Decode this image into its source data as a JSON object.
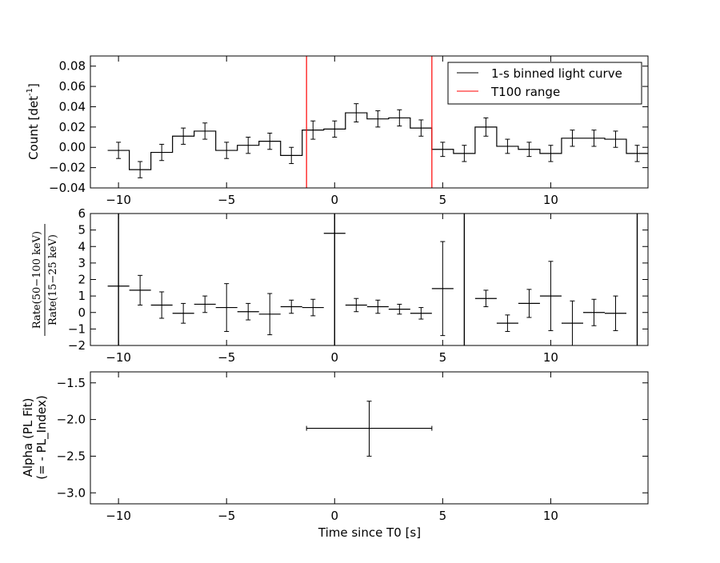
{
  "chart_data": [
    {
      "type": "line",
      "panel": "top",
      "ylabel_main": "Count [det",
      "ylabel_sup": "-1",
      "ylabel_end": "]",
      "xlim": [
        -11.3,
        14.5
      ],
      "ylim": [
        -0.04,
        0.09
      ],
      "yticks": [
        -0.04,
        -0.02,
        0.0,
        0.02,
        0.04,
        0.06,
        0.08
      ],
      "ytick_labels": [
        "−0.04",
        "−0.02",
        "0.00",
        "0.02",
        "0.04",
        "0.06",
        "0.08"
      ],
      "xticks": [
        -10,
        -5,
        0,
        5,
        10
      ],
      "xtick_labels": [
        "−10",
        "−5",
        "0",
        "5",
        "10"
      ],
      "legend": {
        "placement": "top-right",
        "entries": [
          {
            "label": "1-s binned light curve",
            "color": "#000000"
          },
          {
            "label": "T100 range",
            "color": "#ff0000"
          }
        ]
      },
      "series": [
        {
          "name": "1-s binned light curve",
          "color": "#000000",
          "x": [
            -10,
            -9,
            -8,
            -7,
            -6,
            -5,
            -4,
            -3,
            -2,
            -1,
            0,
            1,
            2,
            3,
            4,
            5,
            6,
            7,
            8,
            9,
            10,
            11,
            12,
            13,
            14
          ],
          "y": [
            -0.003,
            -0.022,
            -0.005,
            0.011,
            0.016,
            -0.003,
            0.002,
            0.006,
            -0.008,
            0.017,
            0.018,
            0.034,
            0.028,
            0.029,
            0.019,
            -0.002,
            -0.006,
            0.02,
            0.001,
            -0.002,
            -0.006,
            0.009,
            0.009,
            0.008,
            -0.006
          ],
          "yerr": [
            0.008,
            0.008,
            0.008,
            0.008,
            0.008,
            0.008,
            0.008,
            0.008,
            0.008,
            0.009,
            0.008,
            0.009,
            0.008,
            0.008,
            0.008,
            0.007,
            0.008,
            0.009,
            0.007,
            0.007,
            0.008,
            0.008,
            0.008,
            0.008,
            0.008
          ]
        }
      ],
      "vlines": [
        {
          "name": "T100 range",
          "x": -1.3,
          "color": "#ff0000"
        },
        {
          "name": "T100 range",
          "x": 4.5,
          "color": "#ff0000"
        }
      ]
    },
    {
      "type": "scatter",
      "panel": "middle",
      "ylabel_num": "Rate(50−100 keV)",
      "ylabel_den": "Rate(15−25 keV)",
      "xlim": [
        -11.3,
        14.5
      ],
      "ylim": [
        -2,
        6
      ],
      "yticks": [
        -2,
        -1,
        0,
        1,
        2,
        3,
        4,
        5,
        6
      ],
      "ytick_labels": [
        "−2",
        "−1",
        "0",
        "1",
        "2",
        "3",
        "4",
        "5",
        "6"
      ],
      "xticks": [
        -10,
        -5,
        0,
        5,
        10
      ],
      "xtick_labels": [
        "−10",
        "−5",
        "0",
        "5",
        "10"
      ],
      "series": [
        {
          "name": "",
          "x": [
            -10,
            -9,
            -8,
            -7,
            -6,
            -5,
            -4,
            -3,
            -2,
            -1,
            0,
            1,
            2,
            3,
            4,
            5,
            7,
            8,
            9,
            10,
            11,
            12,
            13
          ],
          "y": [
            1.6,
            1.35,
            0.45,
            -0.05,
            0.5,
            0.3,
            0.05,
            -0.1,
            0.35,
            0.3,
            4.8,
            0.45,
            0.35,
            0.2,
            -0.05,
            1.45,
            0.85,
            -0.65,
            0.55,
            1.0,
            -0.65,
            0.0,
            -0.05
          ],
          "yerr": [
            null,
            0.9,
            0.8,
            0.6,
            0.5,
            1.45,
            0.5,
            1.25,
            0.4,
            0.5,
            null,
            0.4,
            0.4,
            0.3,
            0.35,
            2.85,
            0.5,
            0.5,
            0.85,
            2.1,
            1.35,
            0.8,
            1.05
          ],
          "xerr": 0.5
        }
      ],
      "full_span_bars": [
        -10,
        0,
        6,
        14
      ]
    },
    {
      "type": "scatter",
      "panel": "bottom",
      "ylabel_line1": "Alpha (PL Fit)",
      "ylabel_line2": "(= - PL_Index)",
      "xlabel": "Time since T0 [s]",
      "xlim": [
        -11.3,
        14.5
      ],
      "ylim": [
        -3.15,
        -1.35
      ],
      "yticks": [
        -3.0,
        -2.5,
        -2.0,
        -1.5
      ],
      "ytick_labels": [
        "−3.0",
        "−2.5",
        "−2.0",
        "−1.5"
      ],
      "xticks": [
        -10,
        -5,
        0,
        5,
        10
      ],
      "xtick_labels": [
        "−10",
        "−5",
        "0",
        "5",
        "10"
      ],
      "series": [
        {
          "name": "",
          "x": [
            1.6
          ],
          "y": [
            -2.12
          ],
          "xmin": [
            -1.3
          ],
          "xmax": [
            4.5
          ],
          "ymin": [
            -2.5
          ],
          "ymax": [
            -1.75
          ]
        }
      ]
    }
  ]
}
